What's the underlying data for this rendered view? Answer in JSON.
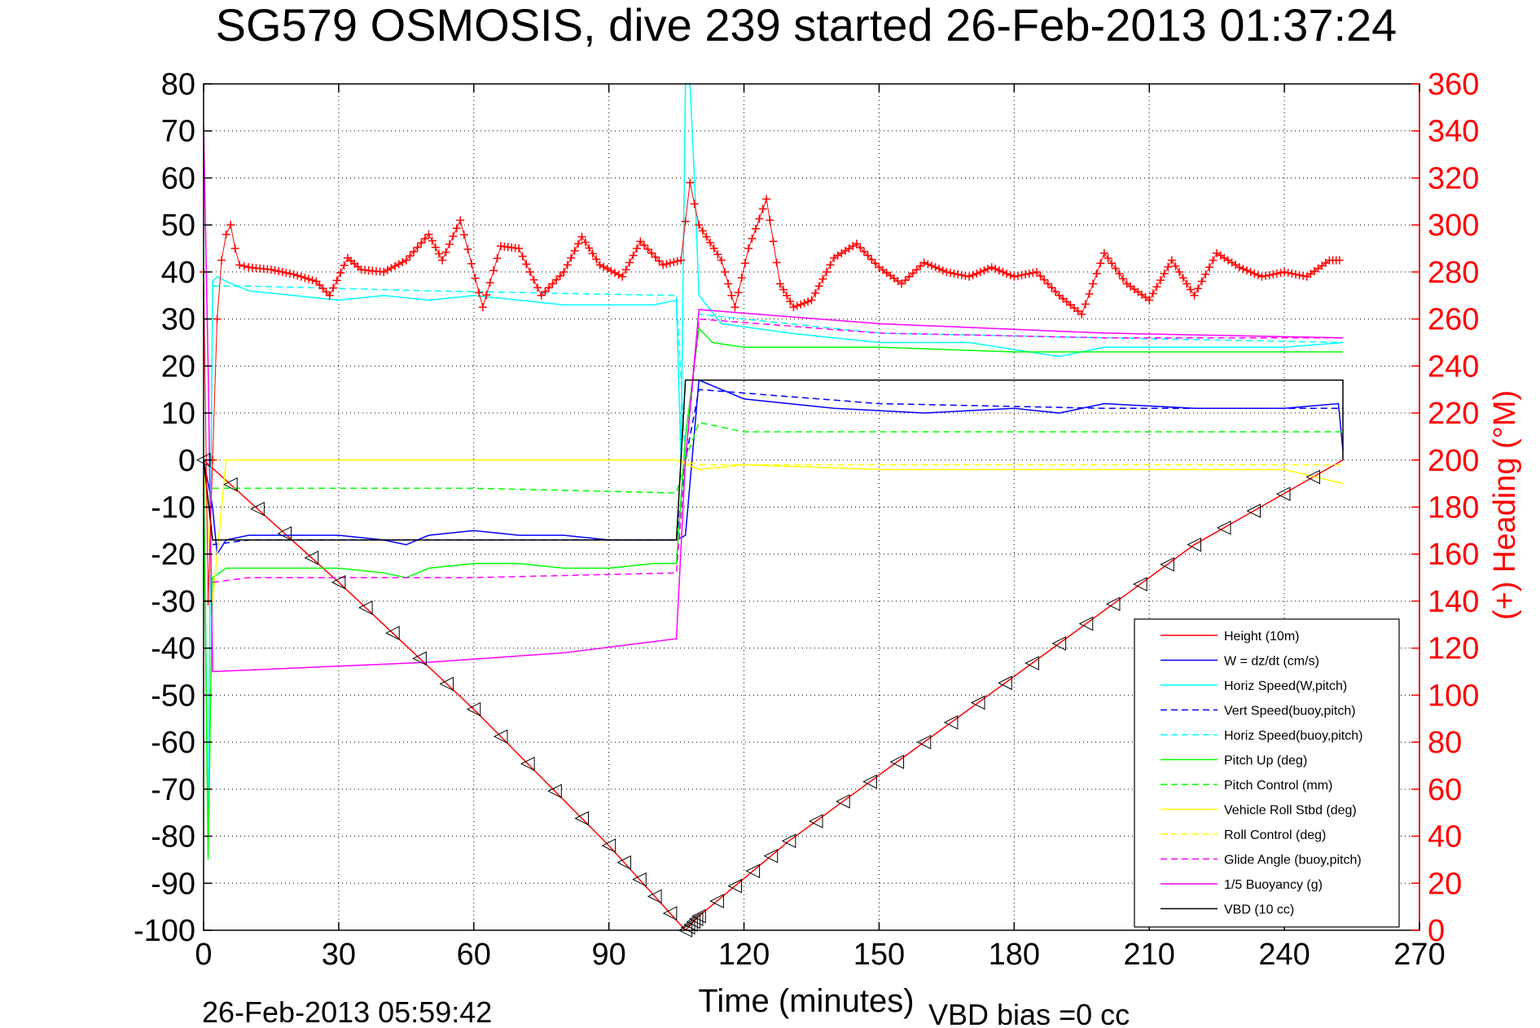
{
  "chart_data": {
    "type": "line",
    "title": "SG579 OSMOSIS, dive 239 started 26-Feb-2013 01:37:24",
    "xlabel": "Time (minutes)",
    "ylabel_right": "(+) Heading (°M)",
    "xlim": [
      0,
      270
    ],
    "ylim_left": [
      -100,
      80
    ],
    "ylim_right": [
      0,
      360
    ],
    "xticks": [
      "0",
      "30",
      "60",
      "90",
      "120",
      "150",
      "180",
      "210",
      "240",
      "270"
    ],
    "yticks_left": [
      "80",
      "70",
      "60",
      "50",
      "40",
      "30",
      "20",
      "10",
      "0",
      "-10",
      "-20",
      "-30",
      "-40",
      "-50",
      "-60",
      "-70",
      "-80",
      "-90",
      "-100"
    ],
    "yticks_right": [
      "360",
      "340",
      "320",
      "300",
      "280",
      "260",
      "240",
      "220",
      "200",
      "180",
      "160",
      "140",
      "120",
      "100",
      "80",
      "60",
      "40",
      "20",
      "0"
    ],
    "grid": true,
    "legend_position": "lower-right",
    "footer_left": "26-Feb-2013 05:59:42",
    "footer_right": "VBD bias =0 cc",
    "series": [
      {
        "name": "Height (10m)",
        "color": "#ff0000",
        "style": "solid",
        "axis": "left",
        "x": [
          0,
          30,
          60,
          90,
          107,
          110,
          130,
          160,
          190,
          220,
          253
        ],
        "y": [
          0,
          -26,
          -53,
          -82,
          -100,
          -97,
          -81,
          -60,
          -39,
          -18,
          0
        ]
      },
      {
        "name": "W = dz/dt (cm/s)",
        "color": "#0000ff",
        "style": "solid",
        "axis": "left",
        "x": [
          0,
          2,
          3,
          5,
          10,
          20,
          30,
          40,
          45,
          50,
          60,
          70,
          80,
          90,
          100,
          105,
          107,
          110,
          120,
          140,
          160,
          180,
          190,
          200,
          220,
          240,
          252,
          253
        ],
        "y": [
          0,
          -10,
          -20,
          -17,
          -16,
          -16,
          -16,
          -17,
          -18,
          -16,
          -15,
          -16,
          -16,
          -17,
          -17,
          -17,
          -16,
          17,
          13,
          11,
          10,
          11,
          10,
          12,
          11,
          11,
          12,
          2
        ]
      },
      {
        "name": "Horiz Speed(W,pitch)",
        "color": "#00ffff",
        "style": "solid",
        "axis": "left",
        "x": [
          0,
          1,
          2,
          3,
          5,
          10,
          20,
          30,
          40,
          50,
          60,
          70,
          80,
          90,
          100,
          105,
          106,
          107,
          108,
          109,
          110,
          115,
          130,
          150,
          170,
          190,
          200,
          220,
          240,
          253
        ],
        "y": [
          0,
          -80,
          38,
          39,
          38,
          36,
          35,
          34,
          35,
          34,
          35,
          34,
          33,
          33,
          33,
          34,
          0,
          80,
          80,
          60,
          35,
          29,
          27,
          25,
          25,
          22,
          24,
          24,
          24,
          25
        ]
      },
      {
        "name": "Vert Speed(buoy,pitch)",
        "color": "#0000ff",
        "style": "dashed",
        "axis": "left",
        "x": [
          2,
          10,
          50,
          105,
          107,
          110,
          150,
          200,
          253
        ],
        "y": [
          -18,
          -17,
          -17,
          -17,
          0,
          15,
          12,
          11,
          11
        ]
      },
      {
        "name": "Horiz Speed(buoy,pitch)",
        "color": "#00ffff",
        "style": "dashed",
        "axis": "left",
        "x": [
          2,
          10,
          50,
          105,
          107,
          110,
          150,
          200,
          253
        ],
        "y": [
          37,
          37,
          36,
          35,
          0,
          31,
          27,
          26,
          25
        ]
      },
      {
        "name": "Pitch Up (deg)",
        "color": "#00ff00",
        "style": "solid",
        "axis": "left",
        "x": [
          0,
          1,
          2,
          5,
          10,
          20,
          30,
          40,
          45,
          50,
          60,
          70,
          80,
          90,
          100,
          105,
          107,
          110,
          113,
          120,
          150,
          180,
          210,
          240,
          253
        ],
        "y": [
          0,
          -85,
          -25,
          -23,
          -23,
          -23,
          -23,
          -24,
          -25,
          -23,
          -22,
          -22,
          -23,
          -23,
          -22,
          -22,
          5,
          28,
          25,
          24,
          24,
          23,
          23,
          23,
          23
        ]
      },
      {
        "name": "Pitch Control (mm)",
        "color": "#00ff00",
        "style": "dashed",
        "axis": "left",
        "x": [
          2,
          10,
          60,
          105,
          107,
          110,
          120,
          253
        ],
        "y": [
          -6,
          -6,
          -6,
          -7,
          0,
          8,
          6,
          6
        ]
      },
      {
        "name": "Vehicle Roll Stbd (deg)",
        "color": "#ffff00",
        "style": "solid",
        "axis": "left",
        "x": [
          0,
          2,
          5,
          10,
          30,
          60,
          90,
          105,
          110,
          120,
          150,
          180,
          210,
          240,
          253
        ],
        "y": [
          0,
          -30,
          0,
          0,
          0,
          0,
          0,
          0,
          -2,
          -1,
          -2,
          -2,
          -2,
          -2,
          -5
        ]
      },
      {
        "name": "Roll Control (deg)",
        "color": "#ffff00",
        "style": "dashed",
        "axis": "left",
        "x": [
          2,
          105,
          110,
          253
        ],
        "y": [
          0,
          0,
          -1,
          -1
        ]
      },
      {
        "name": "Glide Angle (buoy,pitch)",
        "color": "#ff00ff",
        "style": "dashed",
        "axis": "left",
        "x": [
          2,
          10,
          60,
          105,
          107,
          110,
          150,
          200,
          253
        ],
        "y": [
          -26,
          -25,
          -25,
          -24,
          0,
          30,
          27,
          26,
          26
        ]
      },
      {
        "name": "1/5 Buoyancy (g)",
        "color": "#ff00ff",
        "style": "solid",
        "axis": "left",
        "x": [
          0,
          1,
          2,
          50,
          80,
          105,
          107,
          110,
          150,
          200,
          253
        ],
        "y": [
          71,
          20,
          -45,
          -43,
          -41,
          -38,
          0,
          32,
          29,
          27,
          26
        ]
      },
      {
        "name": "VBD (10 cc)",
        "color": "#000000",
        "style": "solid",
        "axis": "left",
        "x": [
          0,
          2,
          105,
          107,
          253,
          253
        ],
        "y": [
          0,
          -17,
          -17,
          17,
          17,
          0
        ]
      },
      {
        "name": "Heading",
        "color": "#ff0000",
        "style": "markers-plus",
        "axis": "right",
        "x": [
          0,
          1,
          2,
          3,
          4,
          5,
          6,
          7,
          8,
          10,
          15,
          20,
          25,
          28,
          32,
          35,
          40,
          45,
          50,
          53,
          57,
          62,
          66,
          70,
          75,
          80,
          84,
          88,
          93,
          97,
          102,
          106,
          108,
          110,
          115,
          118,
          121,
          125,
          128,
          131,
          135,
          140,
          145,
          150,
          155,
          160,
          165,
          170,
          175,
          180,
          185,
          190,
          195,
          200,
          205,
          210,
          215,
          220,
          225,
          230,
          235,
          240,
          245,
          250,
          253
        ],
        "y": [
          280,
          140,
          200,
          260,
          285,
          296,
          300,
          290,
          283,
          282,
          281,
          279,
          276,
          270,
          286,
          281,
          280,
          285,
          296,
          285,
          302,
          265,
          291,
          290,
          270,
          280,
          295,
          283,
          278,
          293,
          283,
          285,
          318,
          300,
          285,
          265,
          290,
          311,
          275,
          265,
          268,
          286,
          292,
          282,
          275,
          284,
          280,
          278,
          282,
          278,
          280,
          270,
          262,
          288,
          275,
          268,
          285,
          270,
          288,
          282,
          278,
          280,
          278,
          285,
          285
        ]
      }
    ]
  }
}
